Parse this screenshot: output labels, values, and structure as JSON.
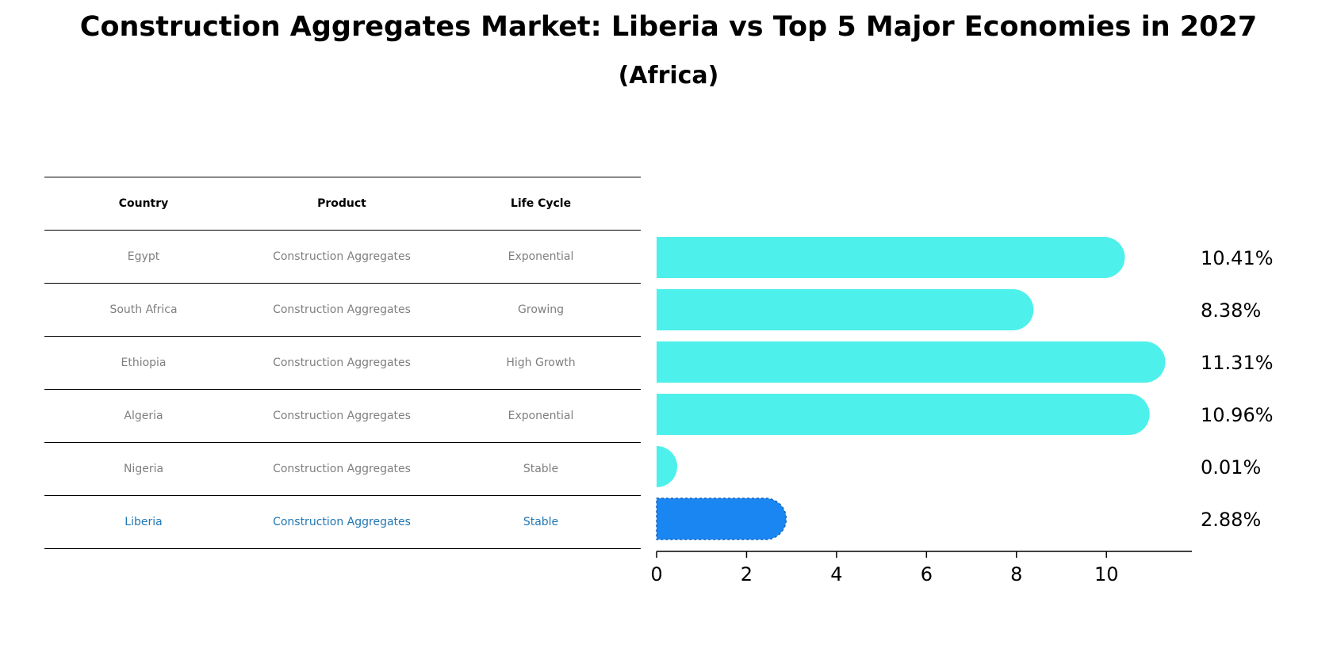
{
  "title": "Construction Aggregates Market: Liberia vs Top 5 Major Economies in 2027",
  "subtitle": "(Africa)",
  "table": {
    "headers": [
      "Country",
      "Product",
      "Life Cycle"
    ],
    "rows": [
      {
        "country": "Egypt",
        "product": "Construction Aggregates",
        "life_cycle": "Exponential"
      },
      {
        "country": "South Africa",
        "product": "Construction Aggregates",
        "life_cycle": "Growing"
      },
      {
        "country": "Ethiopia",
        "product": "Construction Aggregates",
        "life_cycle": "High Growth"
      },
      {
        "country": "Algeria",
        "product": "Construction Aggregates",
        "life_cycle": "Exponential"
      },
      {
        "country": "Nigeria",
        "product": "Construction Aggregates",
        "life_cycle": "Stable"
      },
      {
        "country": "Liberia",
        "product": "Construction Aggregates",
        "life_cycle": "Stable"
      }
    ]
  },
  "chart_data": {
    "type": "bar",
    "orientation": "horizontal",
    "categories": [
      "Egypt",
      "South Africa",
      "Ethiopia",
      "Algeria",
      "Nigeria",
      "Liberia"
    ],
    "values": [
      10.41,
      8.38,
      11.31,
      10.96,
      0.01,
      2.88
    ],
    "labels": [
      "10.41%",
      "8.38%",
      "11.31%",
      "10.96%",
      "0.01%",
      "2.88%"
    ],
    "highlight": "Liberia",
    "xlim": [
      0,
      11.9
    ],
    "xticks": [
      0,
      2,
      4,
      6,
      8,
      10
    ],
    "colors": {
      "default": "#4df0ea",
      "highlight": "#1a86f2"
    }
  }
}
